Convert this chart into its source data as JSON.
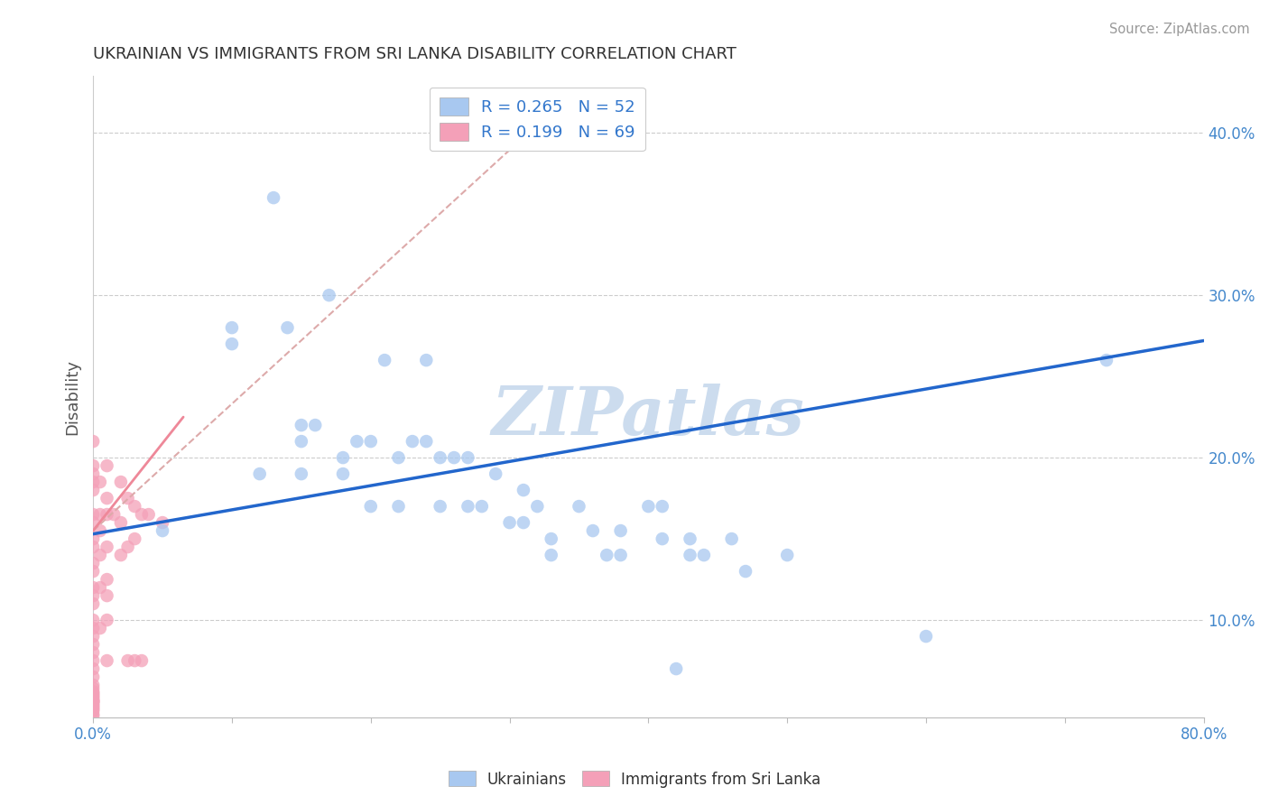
{
  "title": "UKRAINIAN VS IMMIGRANTS FROM SRI LANKA DISABILITY CORRELATION CHART",
  "source": "Source: ZipAtlas.com",
  "ylabel": "Disability",
  "xlim": [
    0.0,
    0.8
  ],
  "ylim": [
    0.04,
    0.435
  ],
  "xticks": [
    0.0,
    0.1,
    0.2,
    0.3,
    0.4,
    0.5,
    0.6,
    0.7,
    0.8
  ],
  "xtick_labels": [
    "0.0%",
    "",
    "",
    "",
    "",
    "",
    "",
    "",
    "80.0%"
  ],
  "yticks": [
    0.1,
    0.2,
    0.3,
    0.4
  ],
  "ytick_labels": [
    "10.0%",
    "20.0%",
    "30.0%",
    "40.0%"
  ],
  "blue_R": 0.265,
  "blue_N": 52,
  "pink_R": 0.199,
  "pink_N": 69,
  "blue_color": "#a8c8f0",
  "pink_color": "#f4a0b8",
  "trend_blue_color": "#2266cc",
  "trend_pink_color": "#ee8899",
  "trend_pink_dash_color": "#ddaaaa",
  "watermark": "ZIPatlas",
  "watermark_color": "#ccdcee",
  "background": "#ffffff",
  "grid_color": "#cccccc",
  "blue_points_x": [
    0.05,
    0.1,
    0.1,
    0.12,
    0.13,
    0.14,
    0.15,
    0.15,
    0.15,
    0.16,
    0.17,
    0.18,
    0.18,
    0.19,
    0.2,
    0.2,
    0.21,
    0.22,
    0.22,
    0.23,
    0.24,
    0.24,
    0.25,
    0.25,
    0.26,
    0.27,
    0.27,
    0.28,
    0.29,
    0.3,
    0.31,
    0.31,
    0.32,
    0.33,
    0.33,
    0.35,
    0.36,
    0.37,
    0.38,
    0.38,
    0.4,
    0.41,
    0.41,
    0.42,
    0.43,
    0.43,
    0.44,
    0.46,
    0.47,
    0.5,
    0.6,
    0.73
  ],
  "blue_points_y": [
    0.155,
    0.27,
    0.28,
    0.19,
    0.36,
    0.28,
    0.22,
    0.21,
    0.19,
    0.22,
    0.3,
    0.2,
    0.19,
    0.21,
    0.21,
    0.17,
    0.26,
    0.17,
    0.2,
    0.21,
    0.21,
    0.26,
    0.17,
    0.2,
    0.2,
    0.17,
    0.2,
    0.17,
    0.19,
    0.16,
    0.16,
    0.18,
    0.17,
    0.14,
    0.15,
    0.17,
    0.155,
    0.14,
    0.155,
    0.14,
    0.17,
    0.17,
    0.15,
    0.07,
    0.14,
    0.15,
    0.14,
    0.15,
    0.13,
    0.14,
    0.09,
    0.26
  ],
  "pink_points_x": [
    0.0,
    0.0,
    0.0,
    0.0,
    0.0,
    0.0,
    0.0,
    0.0,
    0.0,
    0.0,
    0.0,
    0.0,
    0.0,
    0.0,
    0.0,
    0.0,
    0.0,
    0.0,
    0.0,
    0.0,
    0.0,
    0.0,
    0.0,
    0.0,
    0.0,
    0.0,
    0.0,
    0.0,
    0.0,
    0.0,
    0.0,
    0.0,
    0.0,
    0.0,
    0.0,
    0.0,
    0.0,
    0.0,
    0.0,
    0.0,
    0.0,
    0.005,
    0.005,
    0.005,
    0.005,
    0.005,
    0.005,
    0.01,
    0.01,
    0.01,
    0.01,
    0.01,
    0.01,
    0.01,
    0.01,
    0.015,
    0.02,
    0.02,
    0.02,
    0.025,
    0.025,
    0.025,
    0.03,
    0.03,
    0.03,
    0.035,
    0.035,
    0.04,
    0.05
  ],
  "pink_points_y": [
    0.21,
    0.195,
    0.19,
    0.185,
    0.18,
    0.165,
    0.16,
    0.15,
    0.145,
    0.135,
    0.13,
    0.12,
    0.115,
    0.11,
    0.1,
    0.095,
    0.09,
    0.085,
    0.08,
    0.075,
    0.07,
    0.065,
    0.06,
    0.058,
    0.056,
    0.055,
    0.054,
    0.053,
    0.052,
    0.051,
    0.05,
    0.05,
    0.05,
    0.049,
    0.048,
    0.047,
    0.046,
    0.045,
    0.044,
    0.042,
    0.041,
    0.185,
    0.165,
    0.155,
    0.14,
    0.12,
    0.095,
    0.195,
    0.175,
    0.165,
    0.145,
    0.125,
    0.115,
    0.1,
    0.075,
    0.165,
    0.185,
    0.16,
    0.14,
    0.175,
    0.145,
    0.075,
    0.17,
    0.15,
    0.075,
    0.165,
    0.075,
    0.165,
    0.16
  ]
}
